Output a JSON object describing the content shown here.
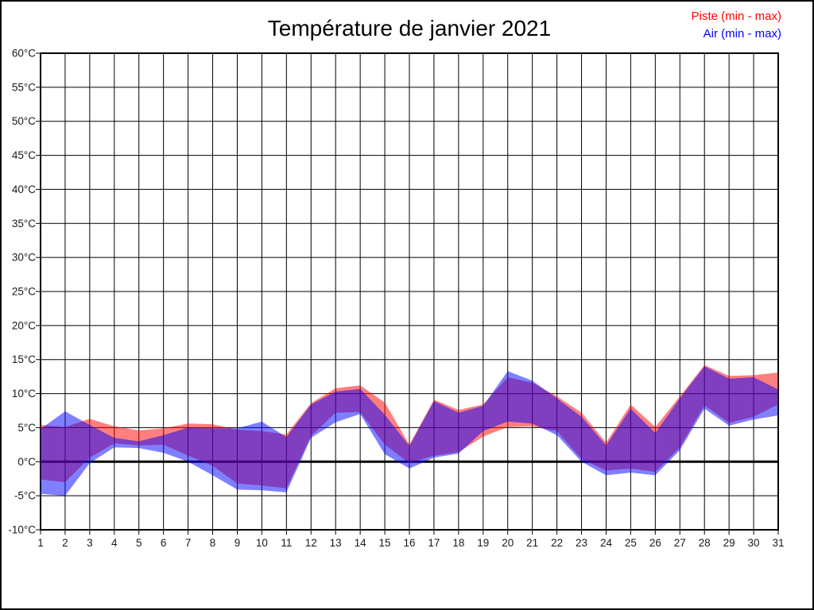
{
  "page": {
    "background": "#ffffff",
    "border_color": "#000000"
  },
  "title": "Température de janvier 2021",
  "legend": [
    {
      "label": "Piste (min - max)",
      "color": "#ff0000"
    },
    {
      "label": "Air (min - max)",
      "color": "#0000ff"
    }
  ],
  "chart_data": {
    "type": "area",
    "title": "Température de janvier 2021",
    "x": [
      1,
      2,
      3,
      4,
      5,
      6,
      7,
      8,
      9,
      10,
      11,
      12,
      13,
      14,
      15,
      16,
      17,
      18,
      19,
      20,
      21,
      22,
      23,
      24,
      25,
      26,
      27,
      28,
      29,
      30,
      31
    ],
    "series": [
      {
        "name": "Piste (min - max)",
        "fill": "rgba(255,0,0,0.5)",
        "min": [
          -2.6,
          -3.0,
          0.6,
          2.7,
          2.4,
          2.5,
          0.9,
          -0.6,
          -3.2,
          -3.5,
          -3.9,
          3.8,
          7.2,
          7.3,
          2.5,
          -0.2,
          0.9,
          1.4,
          3.7,
          5.1,
          5.2,
          4.5,
          0.4,
          -1.3,
          -1.0,
          -1.5,
          2.1,
          8.3,
          5.7,
          6.6,
          8.4
        ],
        "max": [
          5.4,
          5.1,
          6.3,
          5.2,
          4.6,
          4.9,
          5.6,
          5.5,
          4.7,
          4.5,
          4.0,
          8.6,
          10.8,
          11.2,
          8.7,
          2.5,
          9.1,
          7.6,
          8.4,
          12.4,
          11.6,
          9.6,
          7.2,
          2.8,
          8.4,
          5.1,
          9.6,
          14.2,
          12.6,
          12.7,
          13.1
        ]
      },
      {
        "name": "Air (min - max)",
        "fill": "rgba(0,0,255,0.5)",
        "min": [
          -4.7,
          -5.0,
          -0.2,
          2.1,
          2.0,
          1.3,
          0.0,
          -2.0,
          -4.1,
          -4.2,
          -4.5,
          3.5,
          5.8,
          7.0,
          1.1,
          -1.0,
          0.6,
          1.2,
          4.5,
          5.9,
          5.6,
          3.9,
          0.0,
          -2.0,
          -1.6,
          -2.0,
          1.7,
          7.8,
          5.3,
          6.2,
          6.8
        ],
        "max": [
          4.8,
          7.4,
          5.4,
          3.5,
          3.0,
          3.9,
          5.0,
          4.9,
          4.9,
          5.9,
          3.6,
          8.4,
          10.3,
          10.7,
          6.9,
          2.3,
          8.9,
          7.2,
          8.2,
          13.3,
          11.9,
          9.3,
          6.6,
          2.4,
          7.8,
          4.2,
          9.3,
          14.0,
          12.2,
          12.4,
          10.6
        ]
      }
    ],
    "ylim": [
      -10,
      60
    ],
    "xlim": [
      1,
      31
    ],
    "y_ticks": [
      60,
      55,
      50,
      45,
      40,
      35,
      30,
      25,
      20,
      15,
      10,
      5,
      0,
      -5,
      -10
    ],
    "y_tick_labels": [
      "60°C",
      "55°C",
      "50°C",
      "45°C",
      "40°C",
      "35°C",
      "30°C",
      "25°C",
      "20°C",
      "15°C",
      "10°C",
      "5°C",
      "0°C",
      "-5°C",
      "-10°C"
    ],
    "x_tick_labels": [
      "1",
      "2",
      "3",
      "4",
      "5",
      "6",
      "7",
      "8",
      "9",
      "10",
      "11",
      "12",
      "13",
      "14",
      "15",
      "16",
      "17",
      "18",
      "19",
      "20",
      "21",
      "22",
      "23",
      "24",
      "25",
      "26",
      "27",
      "28",
      "29",
      "30",
      "31"
    ],
    "grid": true,
    "grid_color": "#000000",
    "zero_line": true,
    "zero_line_value": 0,
    "axis_text_color": "#1a1a1a",
    "legend_position": "top-right"
  }
}
